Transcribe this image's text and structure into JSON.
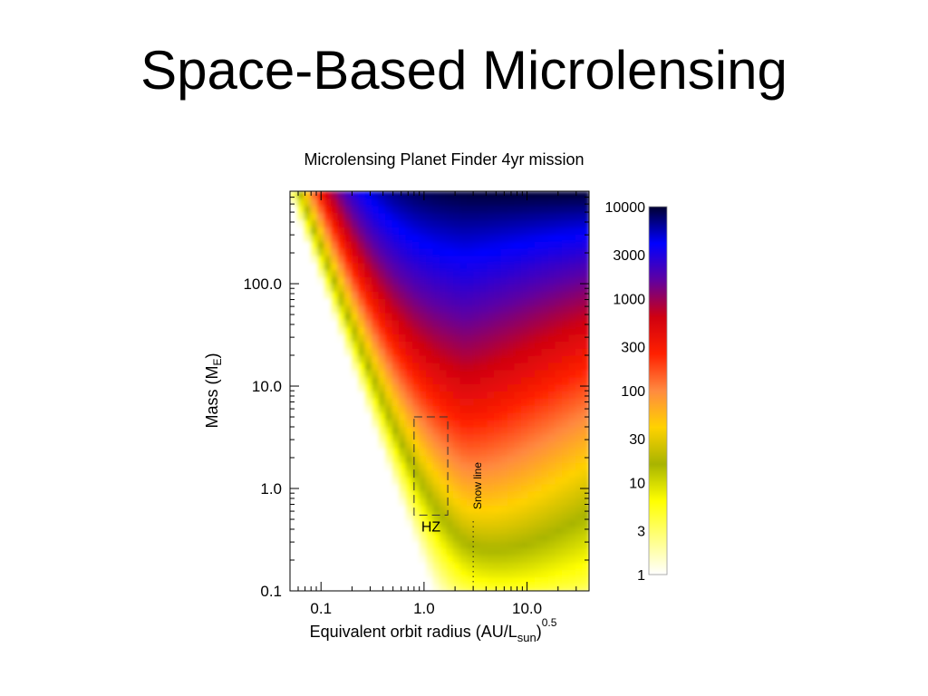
{
  "slide": {
    "title": "Space-Based Microlensing"
  },
  "chart_data": {
    "type": "heatmap",
    "title": "Microlensing Planet Finder 4yr mission",
    "xlabel": {
      "main": "Equivalent orbit radius (AU/L",
      "sub": "sun",
      "close": ")",
      "sup": "0.5"
    },
    "ylabel": {
      "main": "Mass (M",
      "sub": "E",
      "close": ")"
    },
    "x_scale": "log",
    "y_scale": "log",
    "xlim": [
      0.05,
      40
    ],
    "ylim": [
      0.1,
      800
    ],
    "x_ticks": [
      {
        "value": 0.1,
        "label": "0.1"
      },
      {
        "value": 1,
        "label": "1.0"
      },
      {
        "value": 10,
        "label": "10.0"
      }
    ],
    "y_ticks": [
      {
        "value": 0.1,
        "label": "0.1"
      },
      {
        "value": 1,
        "label": "1.0"
      },
      {
        "value": 10,
        "label": "10.0"
      },
      {
        "value": 100,
        "label": "100.0"
      }
    ],
    "colorbar": {
      "scale": "log",
      "range": [
        1,
        10000
      ],
      "ticks": [
        {
          "value": 10000,
          "label": "10000"
        },
        {
          "value": 3000,
          "label": "3000"
        },
        {
          "value": 1000,
          "label": "1000"
        },
        {
          "value": 300,
          "label": "300"
        },
        {
          "value": 100,
          "label": "100"
        },
        {
          "value": 30,
          "label": "30"
        },
        {
          "value": 10,
          "label": "10"
        },
        {
          "value": 3,
          "label": "3"
        },
        {
          "value": 1,
          "label": "1"
        }
      ],
      "colors": [
        "#ffffff",
        "#ffff80",
        "#ffff00",
        "#a8b400",
        "#ffd200",
        "#ff8a40",
        "#ff2000",
        "#d00010",
        "#6000a0",
        "#0000ff",
        "#000030"
      ]
    },
    "annotations": {
      "hz_label": "HZ",
      "hz_box": {
        "x_range": [
          0.8,
          1.7
        ],
        "y_range": [
          0.55,
          5.0
        ]
      },
      "snow_line_label": "Snow line",
      "snow_line_x": 3.0
    }
  }
}
